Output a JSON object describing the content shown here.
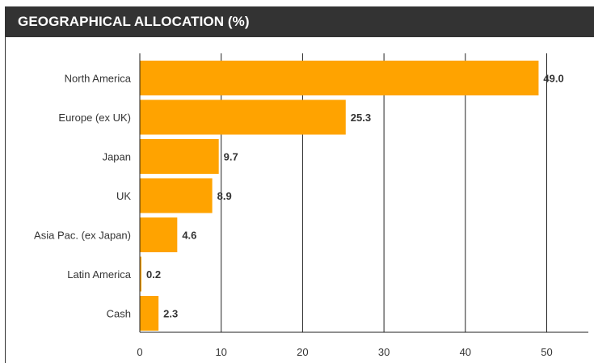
{
  "header": {
    "title": "GEOGRAPHICAL ALLOCATION (%)"
  },
  "colors": {
    "bar": "#FFA300",
    "header_bg": "#333333",
    "text": "#333333",
    "grid": "#222222"
  },
  "chart_data": {
    "type": "bar",
    "orientation": "horizontal",
    "title": "GEOGRAPHICAL ALLOCATION (%)",
    "categories": [
      "North America",
      "Europe (ex UK)",
      "Japan",
      "UK",
      "Asia Pac. (ex Japan)",
      "Latin America",
      "Cash"
    ],
    "values": [
      49.0,
      25.3,
      9.7,
      8.9,
      4.6,
      0.2,
      2.3
    ],
    "value_labels": [
      "49.0",
      "25.3",
      "9.7",
      "8.9",
      "4.6",
      "0.2",
      "2.3"
    ],
    "xlim": [
      0,
      55
    ],
    "xticks": [
      0,
      10,
      20,
      30,
      40,
      50
    ],
    "xlabel": "",
    "ylabel": "",
    "grid": "vertical",
    "legend": "none"
  }
}
